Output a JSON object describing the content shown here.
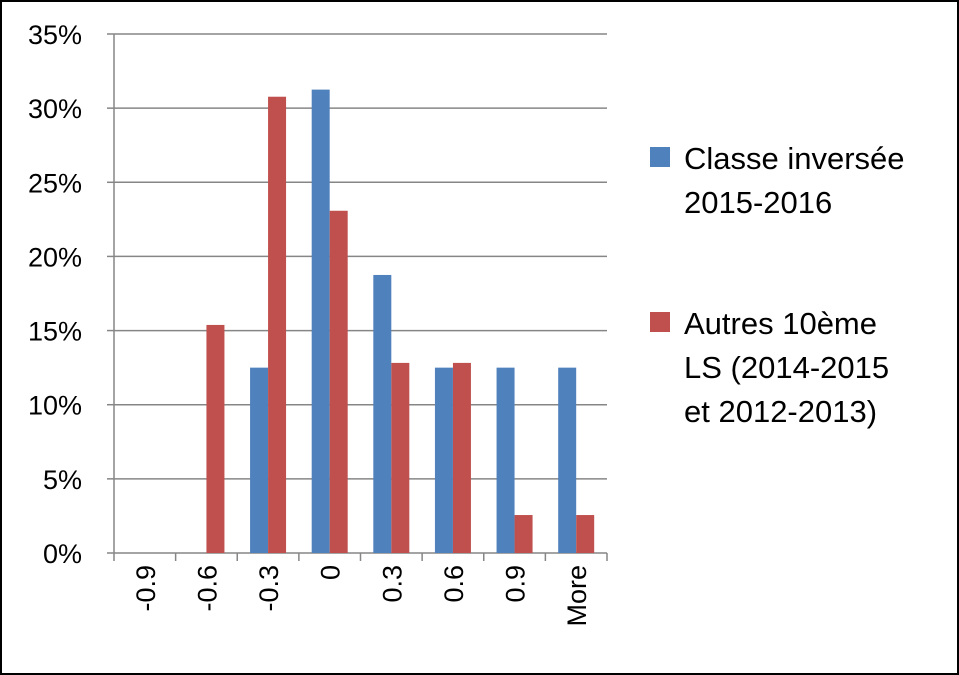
{
  "chart_data": {
    "type": "bar",
    "title": "",
    "xlabel": "",
    "ylabel": "",
    "categories": [
      "-0.9",
      "-0.6",
      "-0.3",
      "0",
      "0.3",
      "0.6",
      "0.9",
      "More"
    ],
    "series": [
      {
        "name": "Classe inversée 2015-2016",
        "name_lines": [
          "Classe inversée",
          "2015-2016"
        ],
        "color": "#4F81BD",
        "values": [
          0,
          0,
          12.5,
          31.25,
          18.75,
          12.5,
          12.5,
          12.5
        ]
      },
      {
        "name": "Autres 10ème LS (2014-2015 et 2012-2013)",
        "name_lines": [
          "Autres 10ème",
          "LS (2014-2015",
          "et 2012-2013)"
        ],
        "color": "#C0504D",
        "values": [
          0,
          15.38,
          30.77,
          23.08,
          12.82,
          12.82,
          2.56,
          2.56
        ]
      }
    ],
    "ylim": [
      0,
      35
    ],
    "y_ticks": [
      0,
      5,
      10,
      15,
      20,
      25,
      30,
      35
    ],
    "y_tick_labels": [
      "0%",
      "5%",
      "10%",
      "15%",
      "20%",
      "25%",
      "30%",
      "35%"
    ],
    "grid": true,
    "legend_position": "right"
  }
}
